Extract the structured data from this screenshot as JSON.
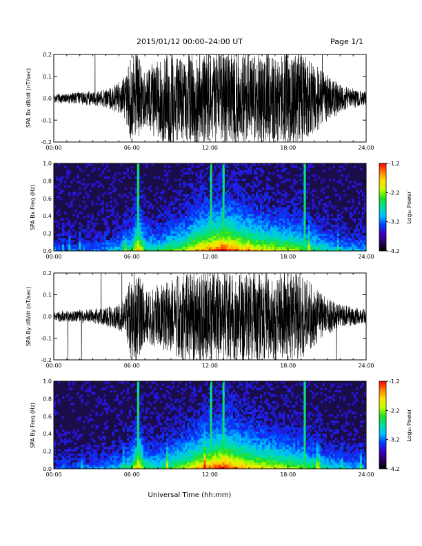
{
  "header": {
    "title": "2015/01/12  00:00–24:00 UT",
    "page": "Page 1/1"
  },
  "colors": {
    "trace": "#000000",
    "spectrogram_background": "#1a0d4a",
    "colorbar_stops": [
      "#000000",
      "#2a0060",
      "#3a00c0",
      "#0040ff",
      "#00c0ff",
      "#00e0a0",
      "#20e020",
      "#c0ff00",
      "#ffe000",
      "#ff8000",
      "#ff0000"
    ]
  },
  "chart_data": [
    {
      "type": "line",
      "ylabel": "SPA Bx dB/dt (nT/sec)",
      "ylim": [
        -0.2,
        0.2
      ],
      "yticks": [
        "0.2",
        "0.1",
        "0.0",
        "-0.1",
        "-0.2"
      ],
      "xlim": [
        "00:00",
        "24:00"
      ],
      "xticks": [
        "00:00",
        "06:00",
        "12:00",
        "18:00",
        "24:00"
      ],
      "x_hours": [
        0,
        3,
        4.5,
        5.5,
        6,
        6.5,
        7,
        8,
        9,
        10,
        11,
        12,
        13,
        14,
        15,
        16,
        17,
        18,
        19,
        20,
        21,
        22,
        23,
        24
      ],
      "envelope_amplitude": [
        0.02,
        0.03,
        0.05,
        0.09,
        0.2,
        0.2,
        0.12,
        0.18,
        0.2,
        0.2,
        0.2,
        0.2,
        0.2,
        0.2,
        0.2,
        0.2,
        0.2,
        0.2,
        0.2,
        0.15,
        0.1,
        0.06,
        0.04,
        0.03
      ]
    },
    {
      "type": "heatmap",
      "ylabel": "SPA Bx Freq (Hz)",
      "ylim": [
        0.0,
        1.0
      ],
      "yticks": [
        "1.0",
        "0.8",
        "0.6",
        "0.4",
        "0.2",
        "0.0"
      ],
      "xlim": [
        "00:00",
        "24:00"
      ],
      "xticks": [
        "00:00",
        "06:00",
        "12:00",
        "18:00",
        "24:00"
      ],
      "colorbar": {
        "label": "Log₁₀ Power",
        "range": [
          -4.2,
          -1.2
        ],
        "ticks": [
          "-1.2",
          "-2.2",
          "-3.2",
          "-4.2"
        ]
      },
      "x_hours": [
        0,
        3,
        5,
        6,
        6.5,
        7,
        8,
        9,
        10,
        11,
        12,
        13,
        14,
        15,
        16,
        17,
        18,
        19,
        20,
        22,
        24
      ],
      "activity": [
        0.15,
        0.2,
        0.3,
        0.45,
        0.8,
        0.45,
        0.4,
        0.5,
        0.6,
        0.75,
        0.85,
        0.95,
        0.85,
        0.75,
        0.7,
        0.65,
        0.6,
        0.55,
        0.45,
        0.3,
        0.25
      ],
      "bright_lines_hours": [
        6.5,
        12.1,
        13.0,
        19.3
      ]
    },
    {
      "type": "line",
      "ylabel": "SPA By dB/dt (nT/sec)",
      "ylim": [
        -0.2,
        0.2
      ],
      "yticks": [
        "0.2",
        "0.1",
        "0.0",
        "-0.1",
        "-0.2"
      ],
      "xlim": [
        "00:00",
        "24:00"
      ],
      "xticks": [
        "00:00",
        "06:00",
        "12:00",
        "18:00",
        "24:00"
      ],
      "x_hours": [
        0,
        3,
        4.5,
        5.5,
        6,
        6.5,
        7,
        8,
        9,
        10,
        11,
        12,
        13,
        14,
        15,
        16,
        17,
        18,
        19,
        20,
        21,
        22,
        23,
        24
      ],
      "envelope_amplitude": [
        0.02,
        0.03,
        0.05,
        0.08,
        0.2,
        0.2,
        0.12,
        0.14,
        0.16,
        0.2,
        0.2,
        0.2,
        0.2,
        0.2,
        0.2,
        0.2,
        0.2,
        0.2,
        0.2,
        0.13,
        0.08,
        0.05,
        0.04,
        0.03
      ]
    },
    {
      "type": "heatmap",
      "ylabel": "SPA By Freq (Hz)",
      "ylim": [
        0.0,
        1.0
      ],
      "yticks": [
        "1.0",
        "0.8",
        "0.6",
        "0.4",
        "0.2",
        "0.0"
      ],
      "xlim": [
        "00:00",
        "24:00"
      ],
      "xticks": [
        "00:00",
        "06:00",
        "12:00",
        "18:00",
        "24:00"
      ],
      "colorbar": {
        "label": "Log₁₀ Power",
        "range": [
          -4.2,
          -1.2
        ],
        "ticks": [
          "-1.2",
          "-2.2",
          "-3.2",
          "-4.2"
        ]
      },
      "x_hours": [
        0,
        3,
        5,
        6,
        6.5,
        7,
        8,
        9,
        10,
        11,
        12,
        13,
        14,
        15,
        16,
        17,
        18,
        19,
        20,
        22,
        24
      ],
      "activity": [
        0.15,
        0.2,
        0.3,
        0.45,
        0.8,
        0.45,
        0.4,
        0.5,
        0.6,
        0.75,
        0.85,
        0.95,
        0.85,
        0.75,
        0.7,
        0.65,
        0.6,
        0.55,
        0.45,
        0.3,
        0.25
      ],
      "bright_lines_hours": [
        6.5,
        12.1,
        13.0,
        19.3
      ]
    }
  ],
  "xaxis_title": "Universal Time (hh:mm)"
}
